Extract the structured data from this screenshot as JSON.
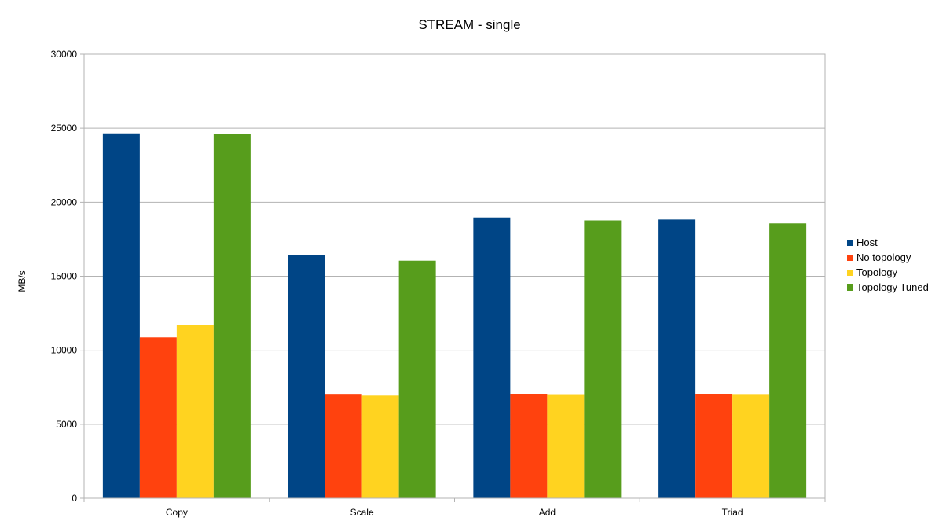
{
  "chart_data": {
    "type": "bar",
    "title": "STREAM - single",
    "xlabel": "",
    "ylabel": "MB/s",
    "ylim": [
      0,
      30000
    ],
    "yticks": [
      0,
      5000,
      10000,
      15000,
      20000,
      25000,
      30000
    ],
    "categories": [
      "Copy",
      "Scale",
      "Add",
      "Triad"
    ],
    "series": [
      {
        "name": "Host",
        "color": "#004586",
        "values": [
          24650,
          16450,
          18970,
          18830
        ]
      },
      {
        "name": "No topology",
        "color": "#ff420e",
        "values": [
          10870,
          7000,
          7020,
          7030
        ]
      },
      {
        "name": "Topology",
        "color": "#ffd320",
        "values": [
          11700,
          6940,
          6980,
          6990
        ]
      },
      {
        "name": "Topology Tuned",
        "color": "#579d1c",
        "values": [
          24620,
          16050,
          18770,
          18570
        ]
      }
    ],
    "grid": true,
    "legend_position": "right"
  }
}
